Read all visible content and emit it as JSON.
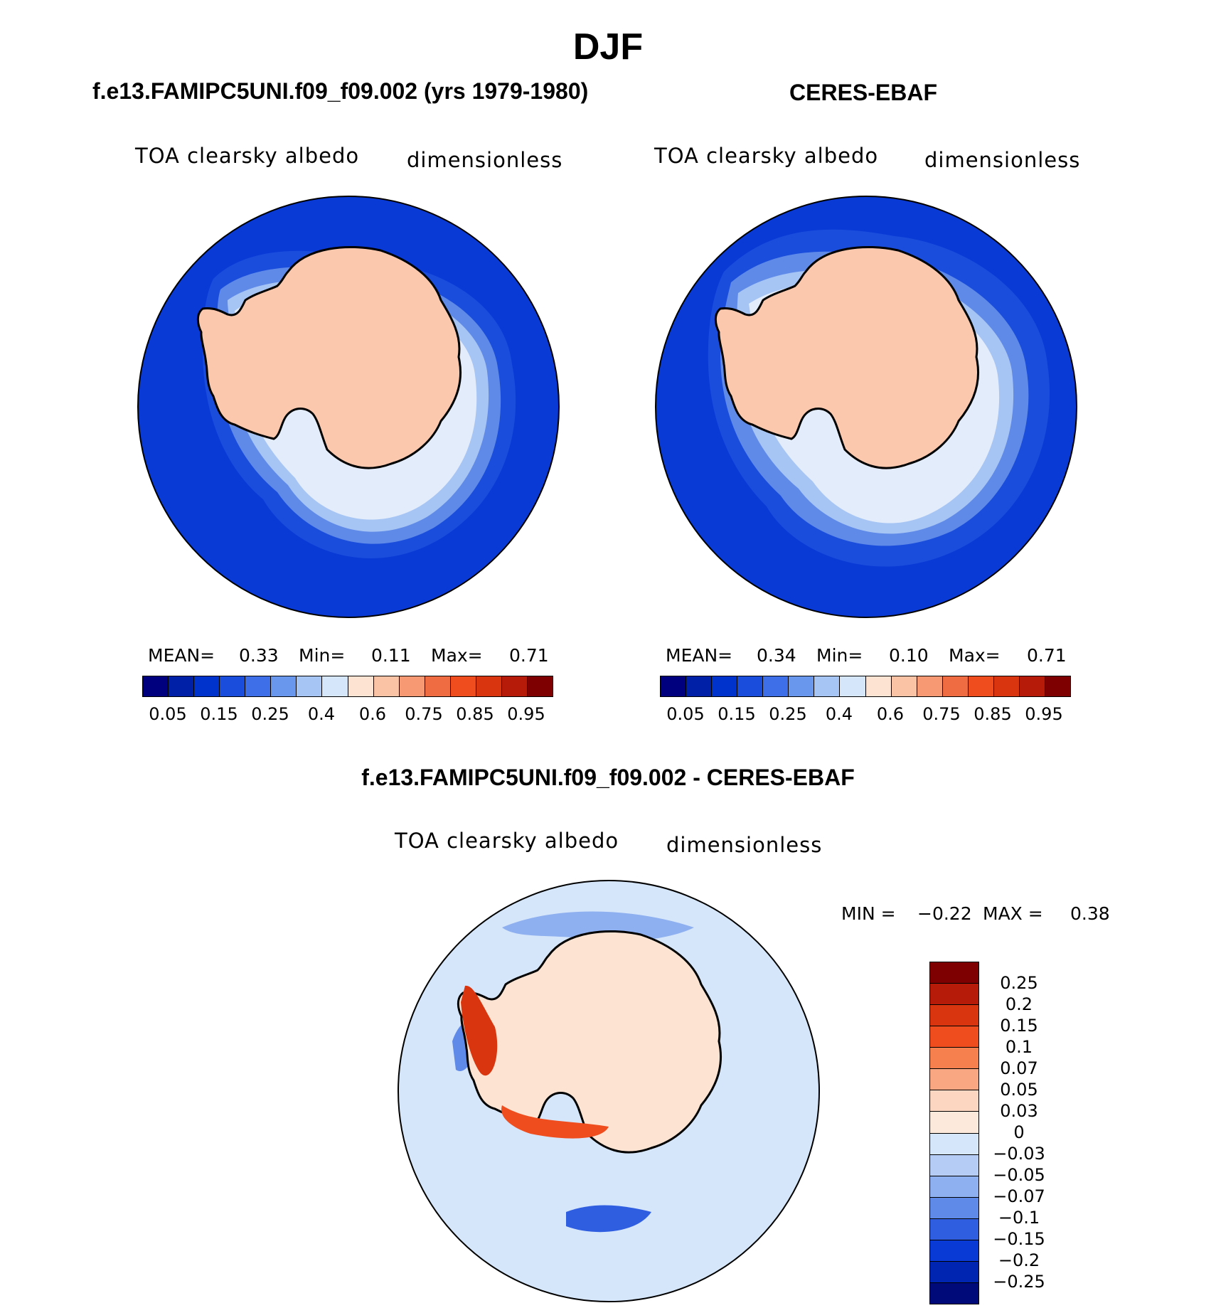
{
  "page": {
    "title": "DJF"
  },
  "panels": [
    {
      "header": "f.e13.FAMIPC5UNI.f09_f09.002 (yrs 1979-1980)",
      "variable": "TOA clearsky albedo",
      "units": "dimensionless",
      "mean_label": "MEAN=",
      "mean_value": "0.33",
      "min_label": "Min=",
      "min_value": "0.11",
      "max_label": "Max=",
      "max_value": "0.71"
    },
    {
      "header": "CERES-EBAF",
      "variable": "TOA clearsky albedo",
      "units": "dimensionless",
      "mean_label": "MEAN=",
      "mean_value": "0.34",
      "min_label": "Min=",
      "min_value": "0.10",
      "max_label": "Max=",
      "max_value": "0.71"
    }
  ],
  "difference": {
    "header": "f.e13.FAMIPC5UNI.f09_f09.002 - CERES-EBAF",
    "variable": "TOA clearsky albedo",
    "units": "dimensionless",
    "min_label": "MIN =",
    "min_value": "−0.22",
    "max_label": "MAX =",
    "max_value": "0.38"
  },
  "colorbars": {
    "field": {
      "colors": [
        "#00007f",
        "#0020a8",
        "#0033cc",
        "#1a4ddc",
        "#3f6fe8",
        "#6a97ee",
        "#a6c4f4",
        "#d6e6fa",
        "#fde4d2",
        "#fbc3a6",
        "#f79a73",
        "#ef6b42",
        "#f04d1e",
        "#d9350f",
        "#b61a08",
        "#7f0000"
      ],
      "labels": [
        "0.05",
        "0.15",
        "0.25",
        "0.4",
        "0.6",
        "0.75",
        "0.85",
        "0.95"
      ]
    },
    "diff": {
      "colors": [
        "#7f0000",
        "#b61a08",
        "#d9350f",
        "#f04d1e",
        "#f7804f",
        "#f9a783",
        "#fcd6c0",
        "#fde9dc",
        "#d6e6fa",
        "#b5cdf5",
        "#8fb0f0",
        "#5f8ae8",
        "#2f5ee0",
        "#0a3ad6",
        "#0025b0",
        "#000a78"
      ],
      "labels": [
        "0.25",
        "0.2",
        "0.15",
        "0.1",
        "0.07",
        "0.05",
        "0.03",
        "0",
        "−0.03",
        "−0.05",
        "−0.07",
        "−0.1",
        "−0.15",
        "−0.2",
        "−0.25"
      ]
    }
  },
  "map_colors": {
    "ocean_field": "#0a3ad6",
    "ice_field": "#fbc8ae",
    "ring1": "#1a4ddc",
    "ring2": "#5f8ae8",
    "ring3": "#a6c4f4",
    "ring4": "#e2ecfb",
    "diff_bg": "#d6e6fa",
    "diff_land": "#fde4d2"
  }
}
